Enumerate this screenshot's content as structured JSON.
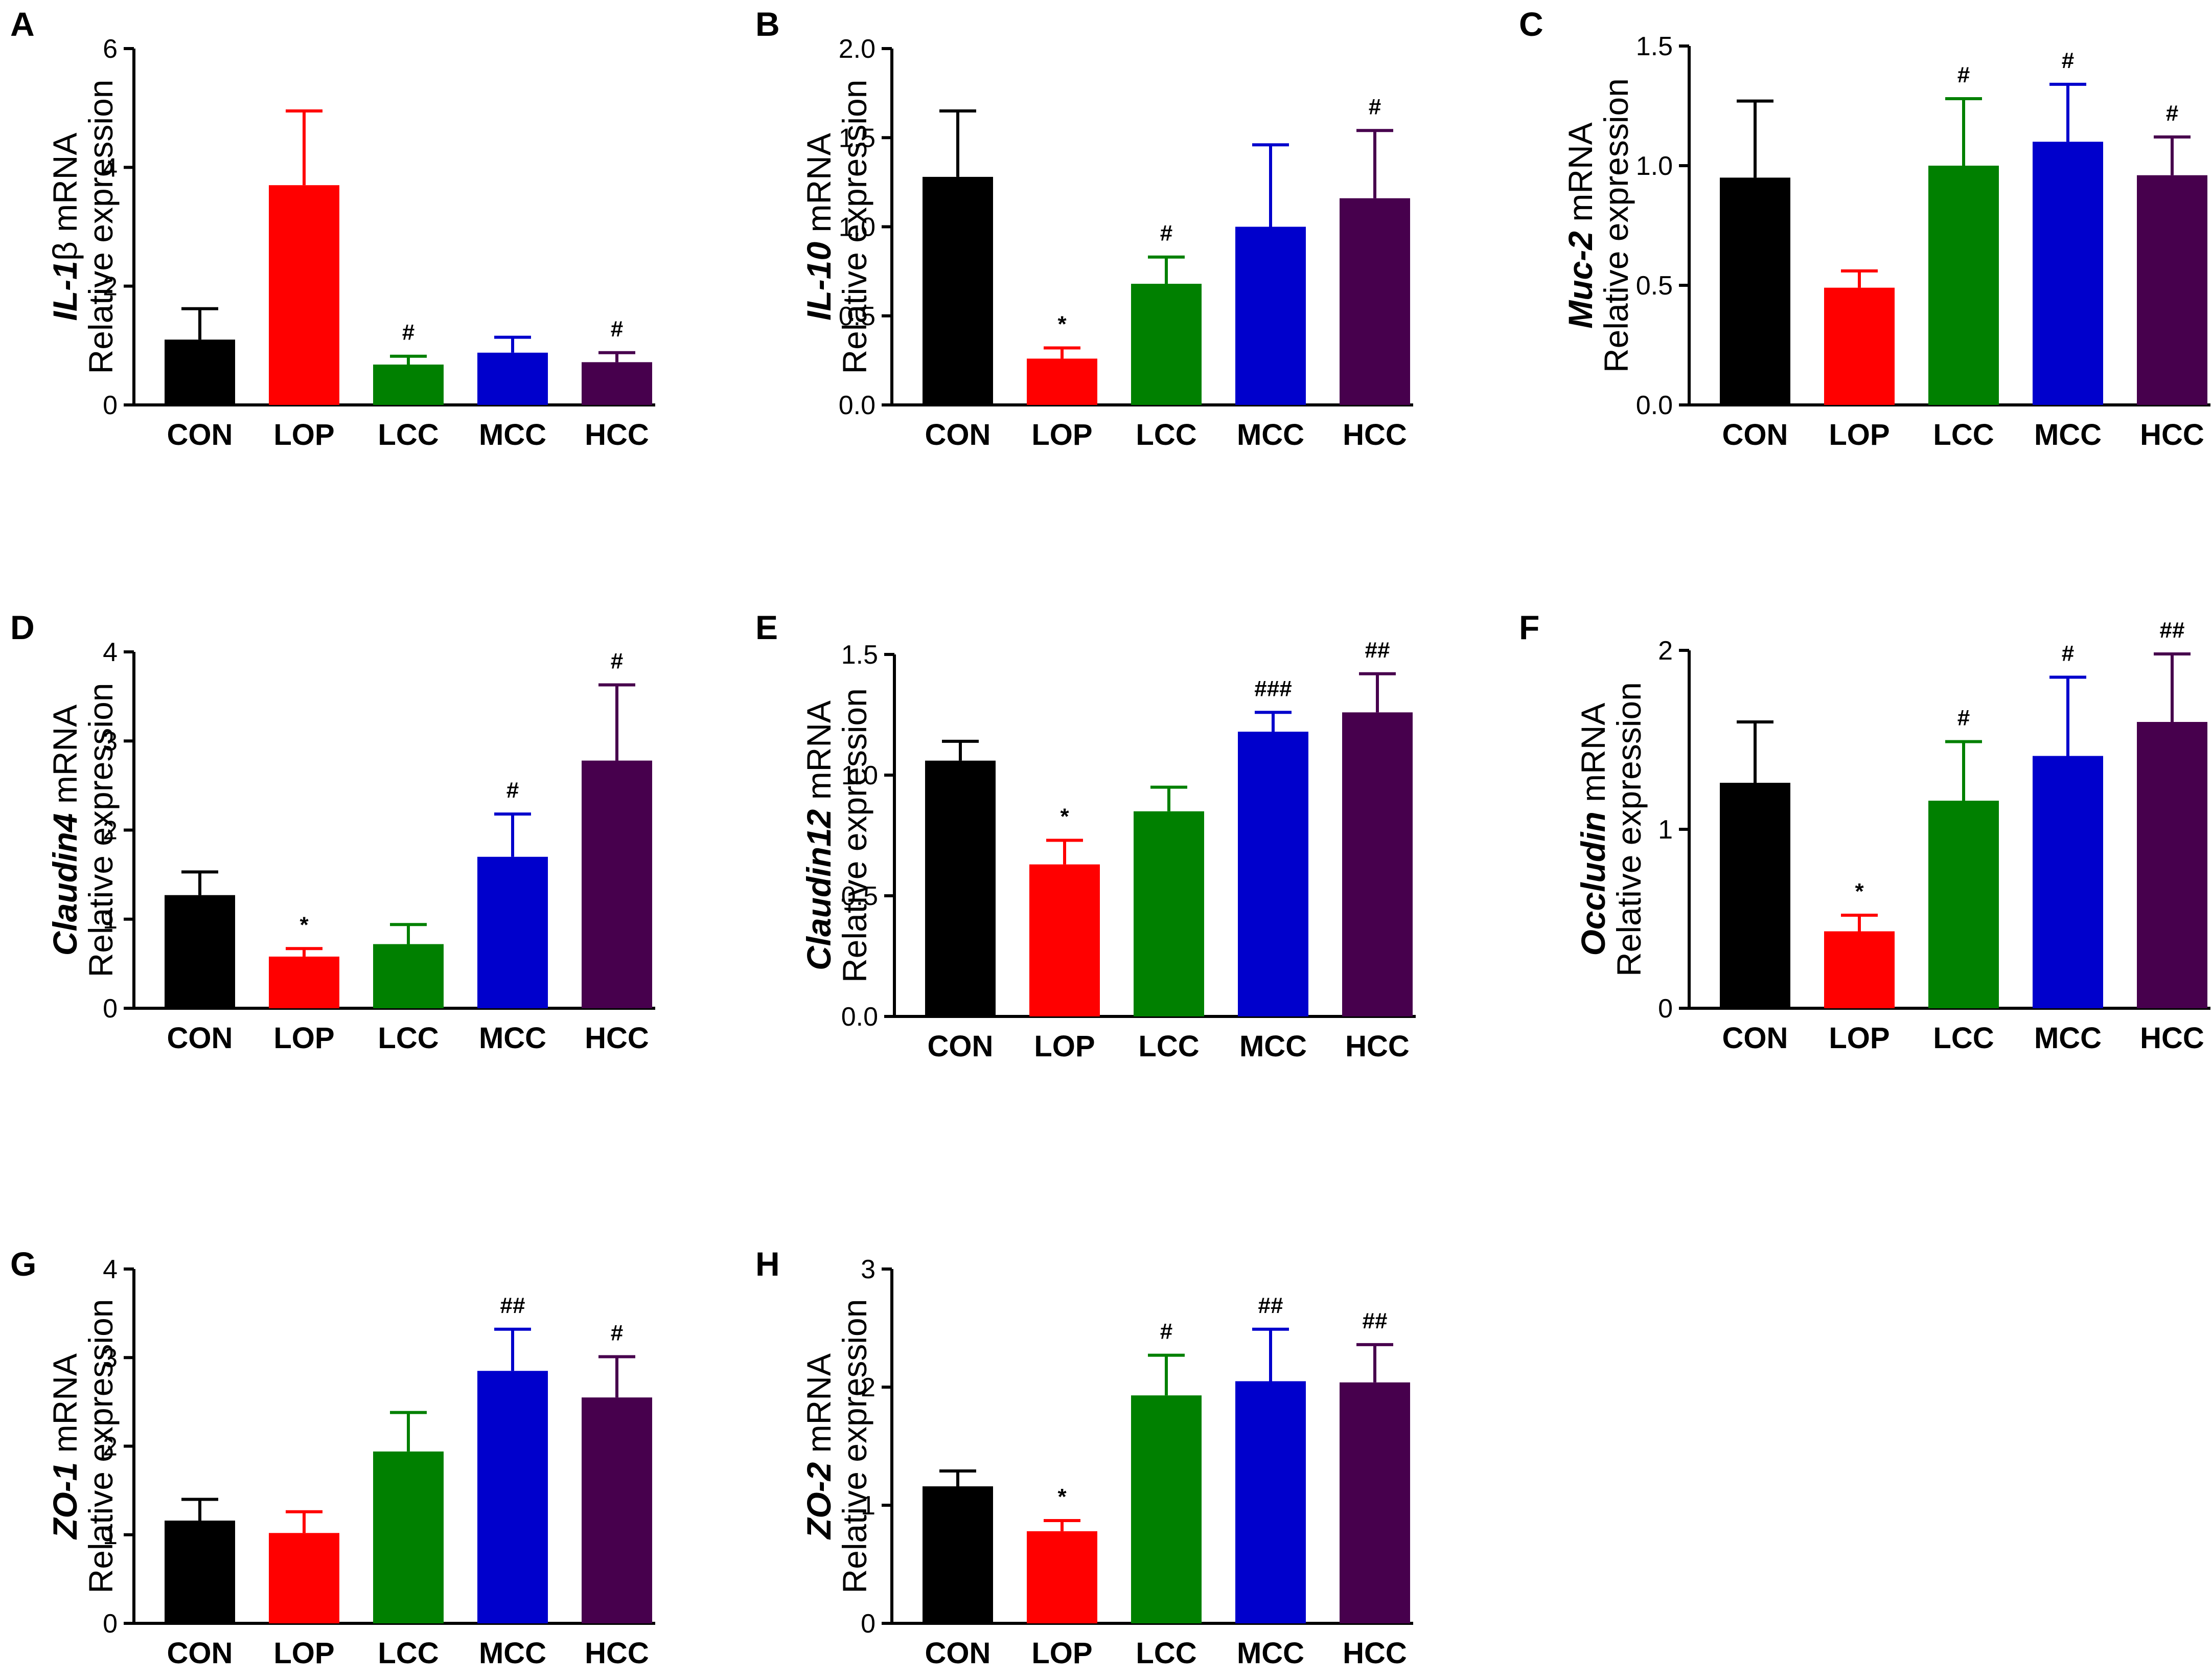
{
  "figure": {
    "colors": {
      "CON": "#000000",
      "LOP": "#ff0000",
      "LCC": "#008000",
      "MCC": "#0000cc",
      "HCC": "#47004d",
      "axis": "#000000"
    }
  },
  "chart_data": [
    {
      "panel": "A",
      "type": "bar",
      "gene": "IL-1",
      "gene_suffix": "β",
      "mrna": " mRNA",
      "ylabel2": "Relative expression",
      "categories": [
        "CON",
        "LOP",
        "LCC",
        "MCC",
        "HCC"
      ],
      "values": [
        1.1,
        3.7,
        0.68,
        0.88,
        0.72
      ],
      "errors": [
        0.52,
        1.25,
        0.14,
        0.26,
        0.16
      ],
      "significance": [
        "",
        "",
        "#",
        "",
        "#"
      ],
      "ylim": [
        0,
        6
      ],
      "yticks": [
        0,
        2,
        4,
        6
      ],
      "ytick_labels": [
        "0",
        "2",
        "4",
        "6"
      ]
    },
    {
      "panel": "B",
      "type": "bar",
      "gene": "IL-10",
      "gene_suffix": "",
      "mrna": "  mRNA",
      "ylabel2": "Relative expression",
      "categories": [
        "CON",
        "LOP",
        "LCC",
        "MCC",
        "HCC"
      ],
      "values": [
        1.28,
        0.26,
        0.68,
        1.0,
        1.16
      ],
      "errors": [
        0.37,
        0.06,
        0.15,
        0.46,
        0.38
      ],
      "significance": [
        "",
        "*",
        "#",
        "",
        "#"
      ],
      "ylim": [
        0,
        2
      ],
      "yticks": [
        0,
        0.5,
        1,
        1.5,
        2
      ],
      "ytick_labels": [
        "0.0",
        "0.5",
        "1.0",
        "1.5",
        "2.0"
      ]
    },
    {
      "panel": "C",
      "type": "bar",
      "gene": "Muc-2",
      "gene_suffix": "",
      "mrna": " mRNA",
      "ylabel2": "Relative expression",
      "categories": [
        "CON",
        "LOP",
        "LCC",
        "MCC",
        "HCC"
      ],
      "values": [
        0.95,
        0.49,
        1.0,
        1.1,
        0.96
      ],
      "errors": [
        0.32,
        0.07,
        0.28,
        0.24,
        0.16
      ],
      "significance": [
        "",
        "",
        "#",
        "#",
        "#"
      ],
      "ylim": [
        0,
        1.5
      ],
      "yticks": [
        0,
        0.5,
        1,
        1.5
      ],
      "ytick_labels": [
        "0.0",
        "0.5",
        "1.0",
        "1.5"
      ]
    },
    {
      "panel": "D",
      "type": "bar",
      "gene": "Claudin4",
      "gene_suffix": "",
      "mrna": " mRNA",
      "ylabel2": "Relative expression",
      "categories": [
        "CON",
        "LOP",
        "LCC",
        "MCC",
        "HCC"
      ],
      "values": [
        1.27,
        0.58,
        0.72,
        1.7,
        2.78
      ],
      "errors": [
        0.26,
        0.09,
        0.22,
        0.48,
        0.85
      ],
      "significance": [
        "",
        "*",
        "",
        "#",
        "#"
      ],
      "ylim": [
        0,
        4
      ],
      "yticks": [
        0,
        1,
        2,
        3,
        4
      ],
      "ytick_labels": [
        "0",
        "1",
        "2",
        "3",
        "4"
      ]
    },
    {
      "panel": "E",
      "type": "bar",
      "gene": "Claudin12",
      "gene_suffix": "",
      "mrna": " mRNA",
      "ylabel2": "Relative expression",
      "categories": [
        "CON",
        "LOP",
        "LCC",
        "MCC",
        "HCC"
      ],
      "values": [
        1.06,
        0.63,
        0.85,
        1.18,
        1.26
      ],
      "errors": [
        0.08,
        0.1,
        0.1,
        0.08,
        0.16
      ],
      "significance": [
        "",
        "*",
        "",
        "###",
        "##"
      ],
      "ylim": [
        0,
        1.5
      ],
      "yticks": [
        0,
        0.5,
        1,
        1.5
      ],
      "ytick_labels": [
        "0.0",
        "0.5",
        "1.0",
        "1.5"
      ]
    },
    {
      "panel": "F",
      "type": "bar",
      "gene": "Occludin",
      "gene_suffix": "",
      "mrna": " mRNA",
      "ylabel2": "Relative expression",
      "categories": [
        "CON",
        "LOP",
        "LCC",
        "MCC",
        "HCC"
      ],
      "values": [
        1.26,
        0.43,
        1.16,
        1.41,
        1.6
      ],
      "errors": [
        0.34,
        0.09,
        0.33,
        0.44,
        0.38
      ],
      "significance": [
        "",
        "*",
        "#",
        "#",
        "##"
      ],
      "ylim": [
        0,
        2
      ],
      "yticks": [
        0,
        1,
        2
      ],
      "ytick_labels": [
        "0",
        "1",
        "2"
      ]
    },
    {
      "panel": "G",
      "type": "bar",
      "gene": "ZO-1",
      "gene_suffix": "",
      "mrna": " mRNA",
      "ylabel2": "Relative expression",
      "categories": [
        "CON",
        "LOP",
        "LCC",
        "MCC",
        "HCC"
      ],
      "values": [
        1.16,
        1.02,
        1.94,
        2.85,
        2.55
      ],
      "errors": [
        0.24,
        0.24,
        0.44,
        0.47,
        0.46
      ],
      "significance": [
        "",
        "",
        "",
        "##",
        "#"
      ],
      "ylim": [
        0,
        4
      ],
      "yticks": [
        0,
        1,
        2,
        3,
        4
      ],
      "ytick_labels": [
        "0",
        "1",
        "2",
        "3",
        "4"
      ]
    },
    {
      "panel": "H",
      "type": "bar",
      "gene": "ZO-2",
      "gene_suffix": "",
      "mrna": " mRNA",
      "ylabel2": "Relative expression",
      "categories": [
        "CON",
        "LOP",
        "LCC",
        "MCC",
        "HCC"
      ],
      "values": [
        1.16,
        0.78,
        1.93,
        2.05,
        2.04
      ],
      "errors": [
        0.13,
        0.09,
        0.34,
        0.44,
        0.32
      ],
      "significance": [
        "",
        "*",
        "#",
        "##",
        "##"
      ],
      "ylim": [
        0,
        3
      ],
      "yticks": [
        0,
        1,
        2,
        3
      ],
      "ytick_labels": [
        "0",
        "1",
        "2",
        "3"
      ]
    }
  ]
}
